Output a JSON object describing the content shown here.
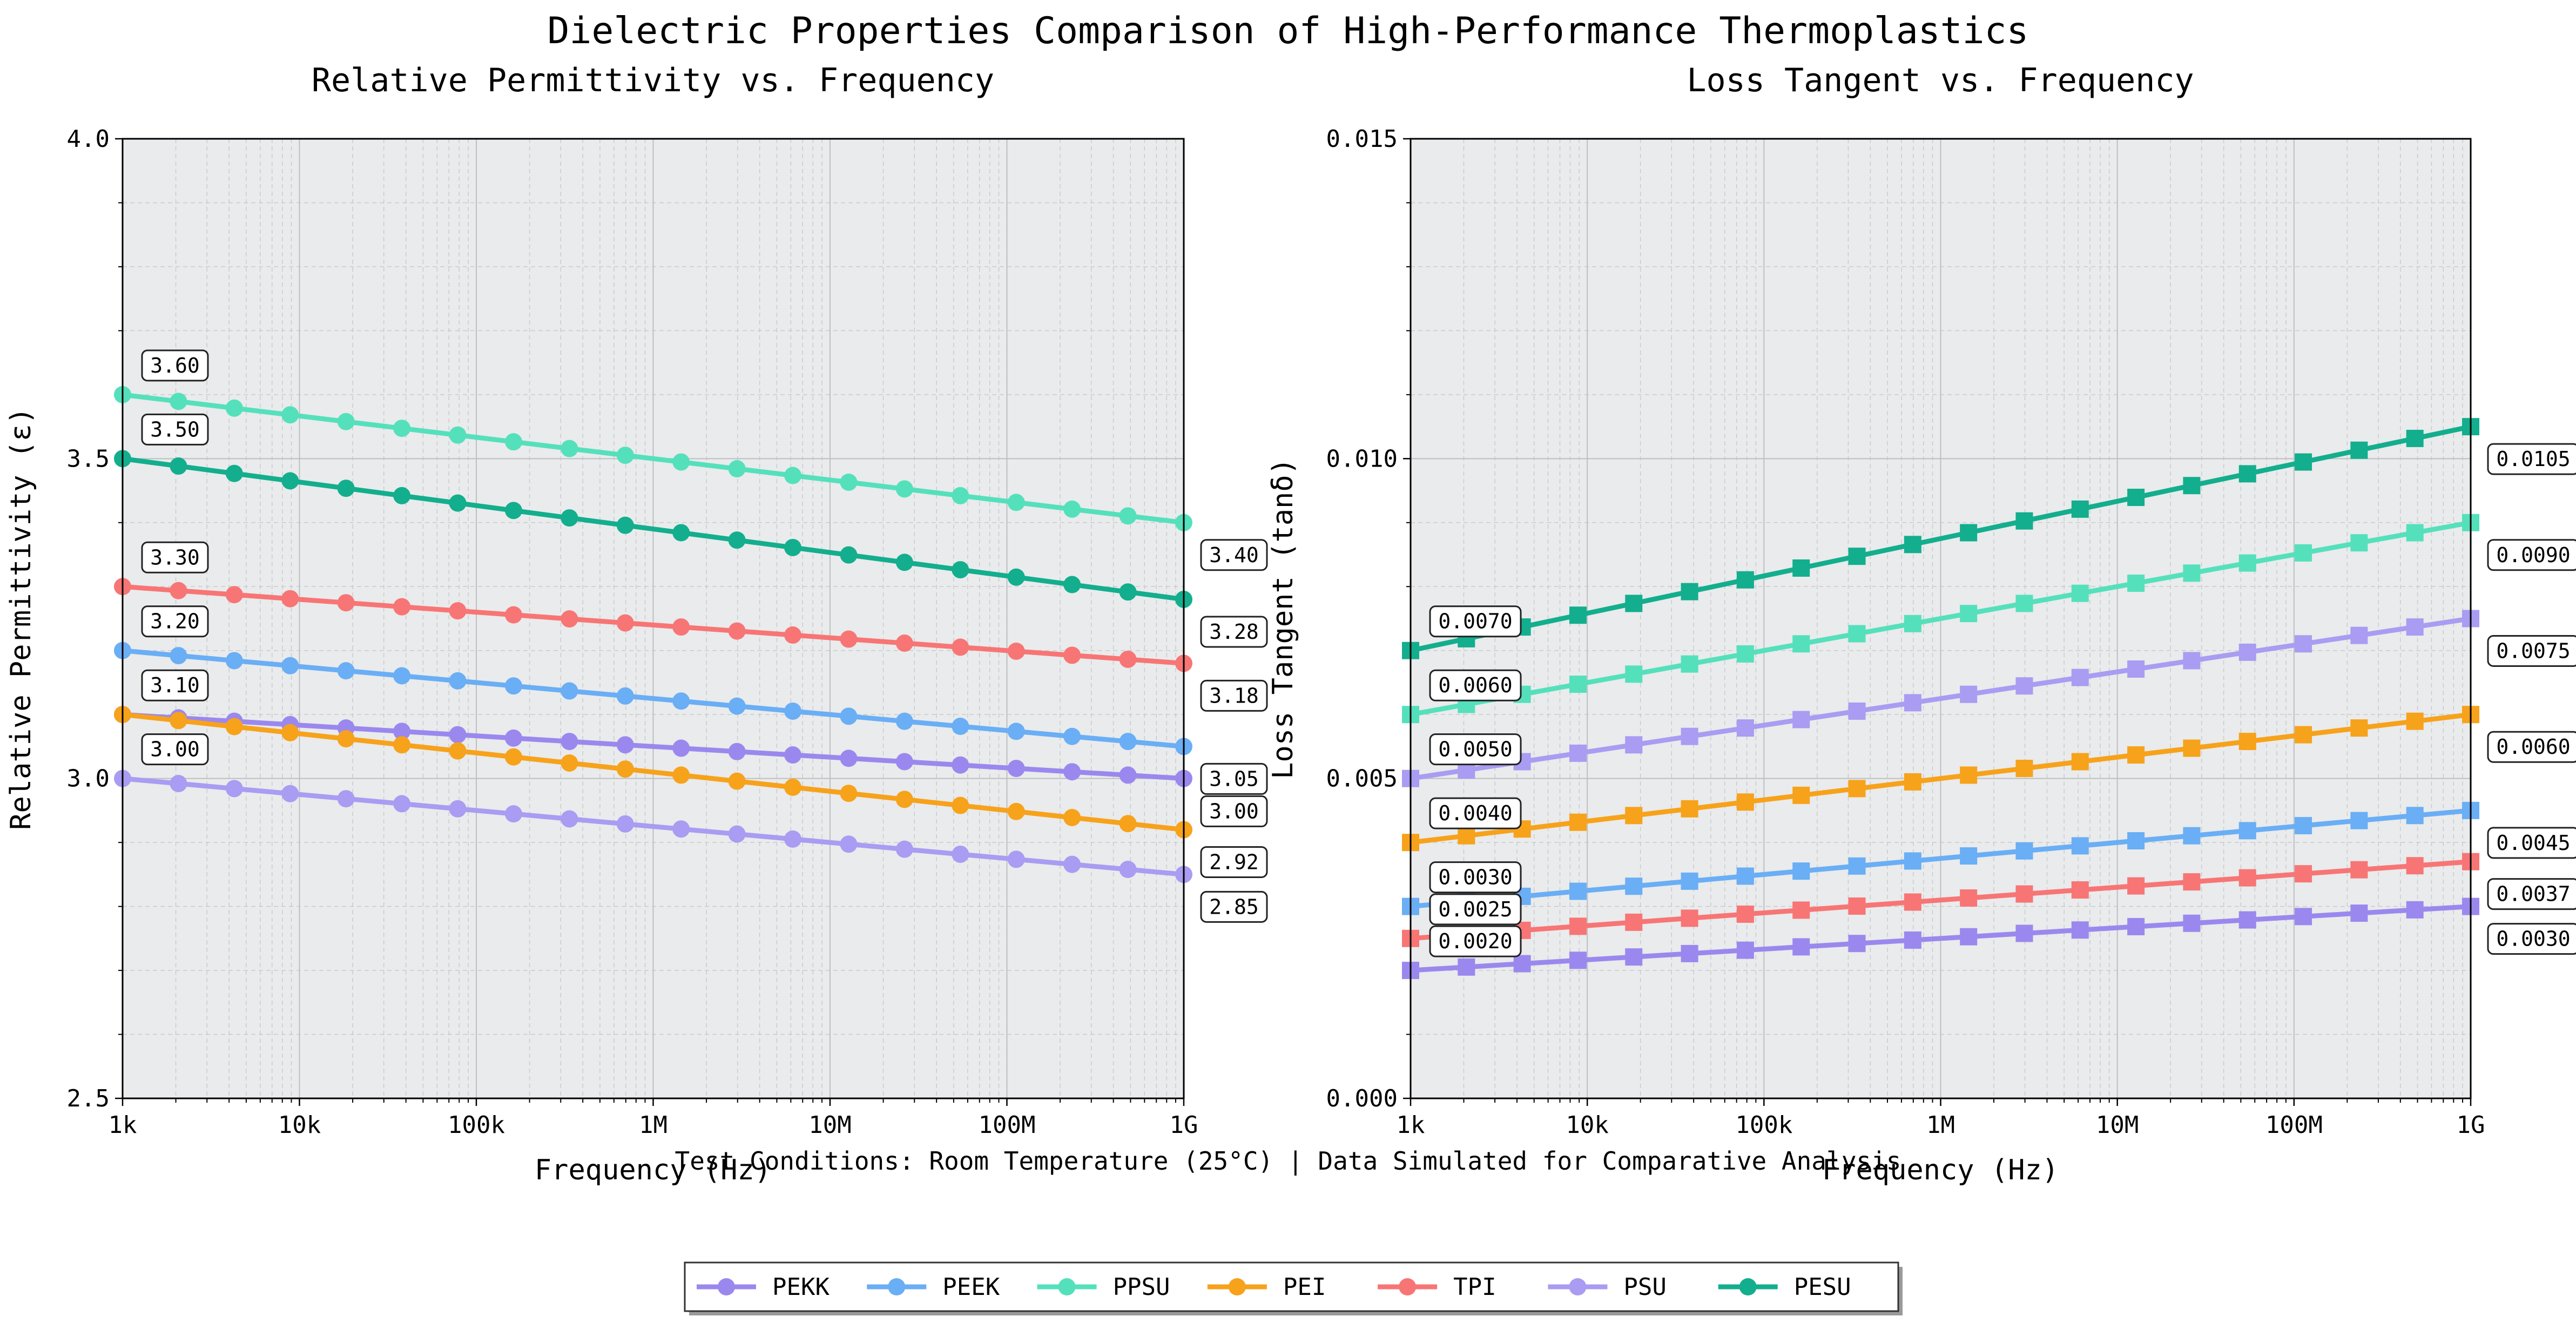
{
  "figure": {
    "suptitle": "Dielectric Properties Comparison of High-Performance Thermoplastics",
    "footnote": "Test Conditions: Room Temperature (25°C) | Data Simulated for Comparative Analysis",
    "colors": {
      "PEKK": "#9B88EE",
      "PEEK": "#6AAEF5",
      "PPSU": "#55E0BC",
      "PEI": "#F7A21B",
      "TPI": "#F87575",
      "PSU": "#A99CF2",
      "PESU": "#13AE8D",
      "plot_bg": "#E9EBEC"
    },
    "legend": [
      "PEKK",
      "PEEK",
      "PPSU",
      "PEI",
      "TPI",
      "PSU",
      "PESU"
    ]
  },
  "chart_data": [
    {
      "type": "line",
      "title": "Relative Permittivity vs. Frequency",
      "xlabel": "Frequency (Hz)",
      "ylabel": "Relative Permittivity (ε)",
      "xscale": "log",
      "xlim": [
        1000,
        1000000000
      ],
      "ylim": [
        2.5,
        4.0
      ],
      "xticks": [
        1000,
        10000,
        100000,
        1000000,
        10000000,
        100000000,
        1000000000
      ],
      "xtick_labels": [
        "1k",
        "10k",
        "100k",
        "1M",
        "10M",
        "100M",
        "1G"
      ],
      "yticks": [
        2.5,
        3.0,
        3.5,
        4.0
      ],
      "ytick_labels": [
        "2.5",
        "3.0",
        "3.5",
        "4.0"
      ],
      "marker": "circle",
      "points_per_series": 20,
      "series": [
        {
          "name": "PEKK",
          "start": 3.1,
          "end": 3.0,
          "start_label": "3.10",
          "end_label": "3.00"
        },
        {
          "name": "PEEK",
          "start": 3.2,
          "end": 3.05,
          "start_label": "3.20",
          "end_label": "3.05"
        },
        {
          "name": "PPSU",
          "start": 3.6,
          "end": 3.4,
          "start_label": "3.60",
          "end_label": "3.40"
        },
        {
          "name": "PEI",
          "start": 3.1,
          "end": 2.92,
          "start_label": "",
          "end_label": "2.92"
        },
        {
          "name": "TPI",
          "start": 3.3,
          "end": 3.18,
          "start_label": "3.30",
          "end_label": "3.18"
        },
        {
          "name": "PSU",
          "start": 3.0,
          "end": 2.85,
          "start_label": "3.00",
          "end_label": "2.85"
        },
        {
          "name": "PESU",
          "start": 3.5,
          "end": 3.28,
          "start_label": "3.50",
          "end_label": "3.28"
        }
      ]
    },
    {
      "type": "line",
      "title": "Loss Tangent vs. Frequency",
      "xlabel": "Frequency (Hz)",
      "ylabel": "Loss Tangent (tanδ)",
      "xscale": "log",
      "xlim": [
        1000,
        1000000000
      ],
      "ylim": [
        0.0,
        0.015
      ],
      "xticks": [
        1000,
        10000,
        100000,
        1000000,
        10000000,
        100000000,
        1000000000
      ],
      "xtick_labels": [
        "1k",
        "10k",
        "100k",
        "1M",
        "10M",
        "100M",
        "1G"
      ],
      "yticks": [
        0.0,
        0.005,
        0.01,
        0.015
      ],
      "ytick_labels": [
        "0.000",
        "0.005",
        "0.010",
        "0.015"
      ],
      "marker": "square",
      "points_per_series": 20,
      "series": [
        {
          "name": "PEKK",
          "start": 0.002,
          "end": 0.003,
          "start_label": "0.0020",
          "end_label": "0.0030"
        },
        {
          "name": "PEEK",
          "start": 0.003,
          "end": 0.0045,
          "start_label": "0.0030",
          "end_label": "0.0045"
        },
        {
          "name": "PPSU",
          "start": 0.006,
          "end": 0.009,
          "start_label": "0.0060",
          "end_label": "0.0090"
        },
        {
          "name": "PEI",
          "start": 0.004,
          "end": 0.006,
          "start_label": "0.0040",
          "end_label": "0.0060"
        },
        {
          "name": "TPI",
          "start": 0.0025,
          "end": 0.0037,
          "start_label": "0.0025",
          "end_label": "0.0037"
        },
        {
          "name": "PSU",
          "start": 0.005,
          "end": 0.0075,
          "start_label": "0.0050",
          "end_label": "0.0075"
        },
        {
          "name": "PESU",
          "start": 0.007,
          "end": 0.0105,
          "start_label": "0.0070",
          "end_label": "0.0105"
        }
      ]
    }
  ]
}
